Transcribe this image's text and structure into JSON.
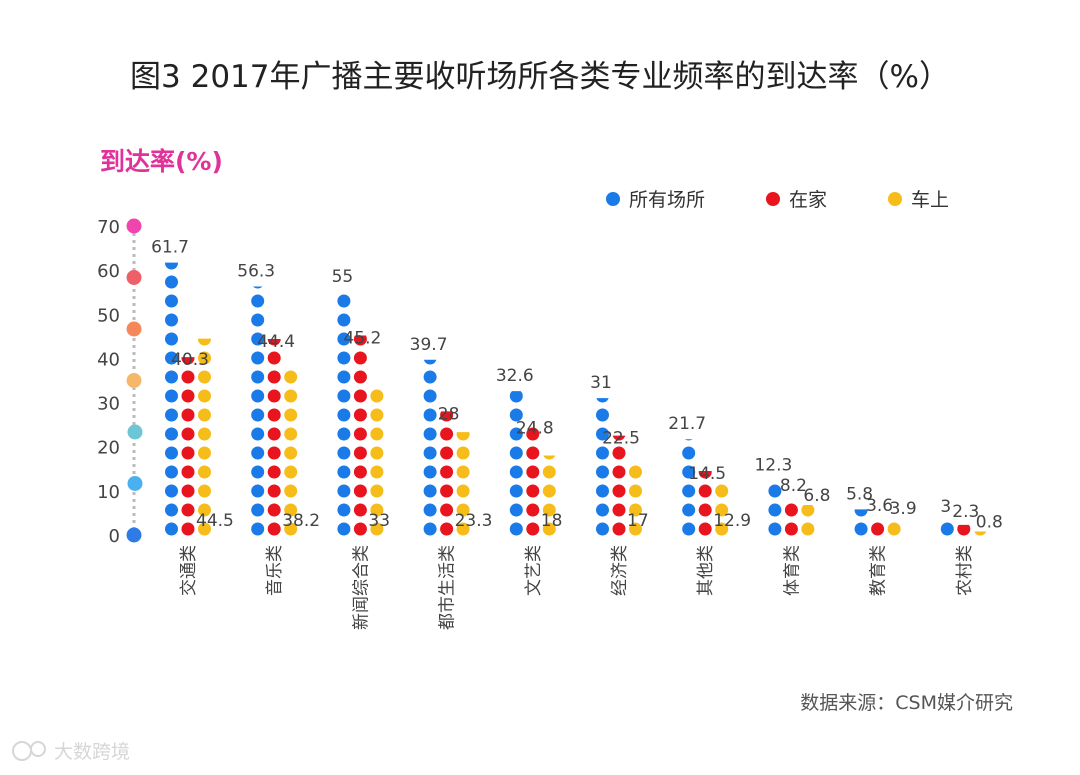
{
  "chart_data": {
    "type": "dot-column",
    "title": "图3 2017年广播主要收听场所各类专业频率的到达率（%）",
    "ylabel": "到达率(%)",
    "xlabel": "",
    "ylim": [
      0,
      70
    ],
    "yticks": [
      0,
      10,
      20,
      30,
      40,
      50,
      60,
      70
    ],
    "grid": false,
    "legend_position": "top-right",
    "categories": [
      "交通类",
      "音乐类",
      "新闻综合类",
      "都市生活类",
      "文艺类",
      "经济类",
      "其他类",
      "体育类",
      "教育类",
      "农村类"
    ],
    "series": [
      {
        "name": "所有场所",
        "color": "#1a7be8",
        "values": [
          61.7,
          56.3,
          55,
          39.7,
          32.6,
          31,
          21.7,
          12.3,
          5.8,
          3
        ]
      },
      {
        "name": "在家",
        "color": "#e8141e",
        "values": [
          40.3,
          44.4,
          45.2,
          28,
          24.8,
          22.5,
          14.5,
          8.2,
          3.6,
          2.3
        ]
      },
      {
        "name": "车上",
        "color": "#f6bd1a",
        "values": [
          44.5,
          38.2,
          33,
          23.3,
          18,
          17,
          12.9,
          6.8,
          3.9,
          0.8
        ]
      }
    ],
    "axis_dot_colors": [
      "#2f7be6",
      "#4ab0ef",
      "#6cc6d6",
      "#f5b86a",
      "#f5875a",
      "#ef5f66",
      "#ef45ad"
    ],
    "source": "数据来源：CSM媒介研究"
  },
  "watermark": "大数跨境"
}
